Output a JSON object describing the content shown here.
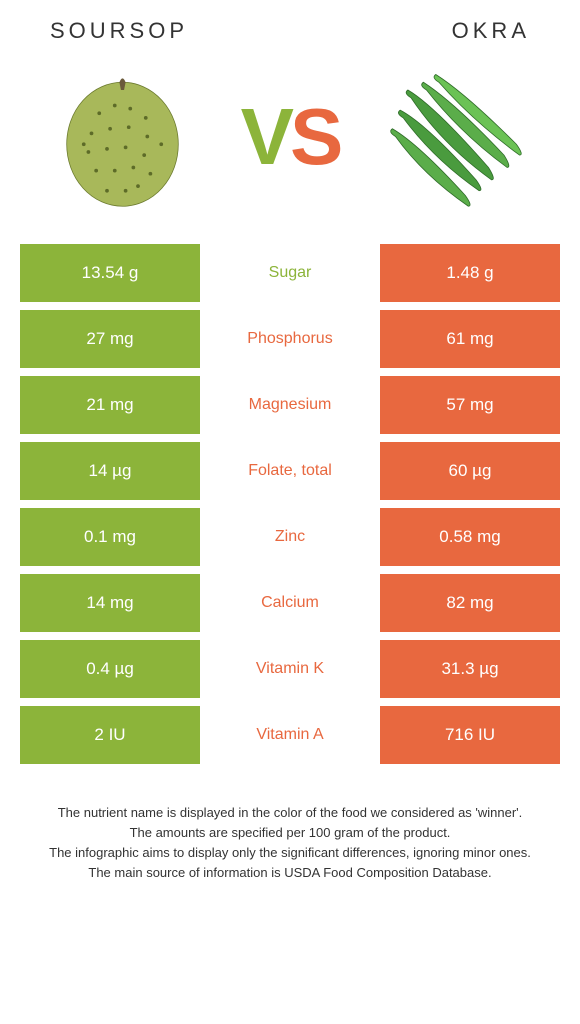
{
  "left_title": "Soursop",
  "right_title": "Okra",
  "vs_v": "V",
  "vs_s": "S",
  "colors": {
    "left": "#8cb43a",
    "right": "#e8683f",
    "text": "#333333",
    "bg": "#ffffff"
  },
  "rows": [
    {
      "left": "13.54 g",
      "label": "Sugar",
      "right": "1.48 g",
      "winner": "left"
    },
    {
      "left": "27 mg",
      "label": "Phosphorus",
      "right": "61 mg",
      "winner": "right"
    },
    {
      "left": "21 mg",
      "label": "Magnesium",
      "right": "57 mg",
      "winner": "right"
    },
    {
      "left": "14 µg",
      "label": "Folate, total",
      "right": "60 µg",
      "winner": "right"
    },
    {
      "left": "0.1 mg",
      "label": "Zinc",
      "right": "0.58 mg",
      "winner": "right"
    },
    {
      "left": "14 mg",
      "label": "Calcium",
      "right": "82 mg",
      "winner": "right"
    },
    {
      "left": "0.4 µg",
      "label": "Vitamin K",
      "right": "31.3 µg",
      "winner": "right"
    },
    {
      "left": "2 IU",
      "label": "Vitamin A",
      "right": "716 IU",
      "winner": "right"
    }
  ],
  "footer": [
    "The nutrient name is displayed in the color of the food we considered as 'winner'.",
    "The amounts are specified per 100 gram of the product.",
    "The infographic aims to display only the significant differences, ignoring minor ones.",
    "The main source of information is USDA Food Composition Database."
  ]
}
